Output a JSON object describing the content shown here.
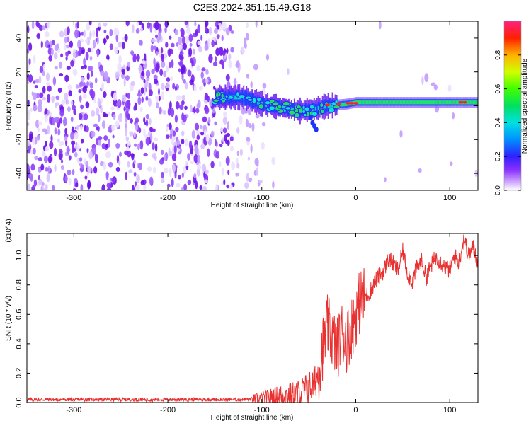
{
  "title": "C2E3.2024.351.15.49.G18",
  "chart_data": [
    {
      "type": "heatmap",
      "xlabel": "Height of straight line (km)",
      "ylabel": "Frequency (Hz)",
      "xlim": [
        -350,
        130
      ],
      "ylim": [
        -50,
        50
      ],
      "x_ticks": [
        -300,
        -200,
        -100,
        0,
        100
      ],
      "x_tick_labels": [
        "-300",
        "-200",
        "-100",
        "0",
        "100"
      ],
      "y_ticks": [
        -40,
        -20,
        0,
        20,
        40
      ],
      "y_tick_labels": [
        "-40",
        "-20",
        "0",
        "20",
        "40"
      ],
      "colorbar": {
        "label": "Normalized spectral amplitude",
        "range": [
          0,
          1
        ],
        "ticks": [
          0.0,
          0.2,
          0.4,
          0.6,
          0.8
        ],
        "tick_labels": [
          "0.0",
          "0.2",
          "0.4",
          "0.6",
          "0.8"
        ]
      },
      "trace_center_hz": [
        {
          "x": -150,
          "y": 5
        },
        {
          "x": -120,
          "y": 5
        },
        {
          "x": -100,
          "y": 1
        },
        {
          "x": -80,
          "y": -1
        },
        {
          "x": -60,
          "y": -3
        },
        {
          "x": -45,
          "y": -2
        },
        {
          "x": -30,
          "y": 0
        },
        {
          "x": -10,
          "y": 1
        },
        {
          "x": 0,
          "y": 2
        },
        {
          "x": 50,
          "y": 2
        },
        {
          "x": 100,
          "y": 2
        },
        {
          "x": 130,
          "y": 2
        }
      ]
    },
    {
      "type": "line",
      "xlabel": "Height of straight line (km)",
      "ylabel": "SNR (10 * v/v)",
      "y_scale_label": "(x10^4)",
      "xlim": [
        -350,
        130
      ],
      "ylim": [
        0.0,
        1.15
      ],
      "x_ticks": [
        -300,
        -200,
        -100,
        0,
        100
      ],
      "x_tick_labels": [
        "-300",
        "-200",
        "-100",
        "0",
        "100"
      ],
      "y_ticks": [
        0.0,
        0.2,
        0.4,
        0.6,
        0.8,
        1.0
      ],
      "y_tick_labels": [
        "0.0",
        "0.2",
        "0.4",
        "0.6",
        "0.8",
        "1.0"
      ],
      "series": [
        {
          "name": "SNR",
          "color": "#e83232",
          "x": [
            -350,
            -300,
            -250,
            -200,
            -150,
            -120,
            -100,
            -90,
            -80,
            -70,
            -60,
            -55,
            -50,
            -45,
            -40,
            -35,
            -30,
            -25,
            -20,
            -15,
            -10,
            -5,
            0,
            5,
            10,
            15,
            20,
            25,
            30,
            35,
            40,
            45,
            50,
            55,
            60,
            65,
            70,
            75,
            80,
            85,
            90,
            95,
            100,
            105,
            110,
            115,
            120,
            125,
            130
          ],
          "values": [
            0.02,
            0.02,
            0.02,
            0.02,
            0.02,
            0.02,
            0.03,
            0.04,
            0.05,
            0.05,
            0.06,
            0.08,
            0.1,
            0.12,
            0.2,
            0.38,
            0.52,
            0.45,
            0.36,
            0.48,
            0.42,
            0.5,
            0.6,
            0.7,
            0.72,
            0.75,
            0.82,
            0.86,
            0.9,
            0.98,
            0.94,
            0.9,
            1.03,
            0.88,
            0.82,
            0.92,
            0.96,
            0.85,
            0.93,
            0.99,
            0.96,
            0.92,
            0.9,
            1.0,
            0.95,
            1.13,
            1.0,
            1.06,
            0.95
          ]
        }
      ]
    }
  ]
}
